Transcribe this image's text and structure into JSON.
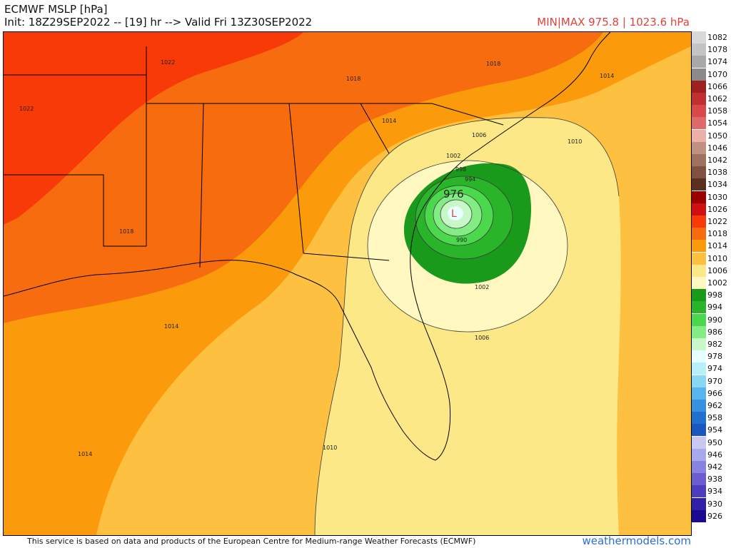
{
  "header": {
    "title": "ECMWF MSLP [hPa]",
    "init_line": "Init: 18Z29SEP2022 -- [19] hr --> Valid Fri 13Z30SEP2022",
    "minmax": "MIN|MAX 975.8 | 1023.6 hPa"
  },
  "footer": {
    "attribution": "This service is based on data and products of the European Centre for Medium-range Weather Forecasts (ECMWF)",
    "site": "weathermodels.com"
  },
  "map": {
    "low_symbol": "L",
    "center_pressure_label": "976",
    "contour_labels": {
      "c1022a": "1022",
      "c1022b": "1022",
      "c1018a": "1018",
      "c1018b": "1018",
      "c1018c": "1018",
      "c1014a": "1014",
      "c1014b": "1014",
      "c1014c": "1014",
      "c1014d": "1014",
      "c1010a": "1010",
      "c1010b": "1010",
      "c1006a": "1006",
      "c1006b": "1006",
      "c1002a": "1002",
      "c1002b": "1002",
      "c998": "998",
      "c994": "994",
      "c990": "990"
    }
  },
  "legend": {
    "colors": {
      "1082": "#d8d8d8",
      "1078": "#c4c4c4",
      "1074": "#a8a8a8",
      "1070": "#8a8a8a",
      "1066": "#a02020",
      "1062": "#c03030",
      "1058": "#d84a4a",
      "1054": "#e06a6a",
      "1050": "#ebb0a8",
      "1046": "#c09080",
      "1042": "#a07060",
      "1038": "#805040",
      "1034": "#5a3020",
      "1030": "#9a0000",
      "1026": "#d01010",
      "1022": "#f83a08",
      "1018": "#f86c10",
      "1014": "#fb9a0a",
      "1010": "#fdc040",
      "1006": "#fde888",
      "1002": "#fff8c0",
      "998": "#1a9a1a",
      "994": "#2ab42a",
      "990": "#4cd84c",
      "986": "#84ec84",
      "982": "#c8f8c8",
      "978": "#e6ffff",
      "974": "#b8f0fa",
      "970": "#88d8f4",
      "966": "#58b4ec",
      "962": "#3890e0",
      "958": "#2070d0",
      "954": "#1858c0",
      "950": "#c8c8f0",
      "946": "#a8a8ec",
      "942": "#8a82e0",
      "938": "#6c5cd0",
      "934": "#4c3cc0",
      "930": "#3020a8",
      "926": "#1a0a90"
    },
    "levels": [
      "1082",
      "1078",
      "1074",
      "1070",
      "1066",
      "1062",
      "1058",
      "1054",
      "1050",
      "1046",
      "1042",
      "1038",
      "1034",
      "1030",
      "1026",
      "1022",
      "1018",
      "1014",
      "1010",
      "1006",
      "1002",
      "998",
      "994",
      "990",
      "986",
      "982",
      "978",
      "974",
      "970",
      "966",
      "962",
      "958",
      "954",
      "950",
      "946",
      "942",
      "938",
      "934",
      "930",
      "926"
    ]
  }
}
